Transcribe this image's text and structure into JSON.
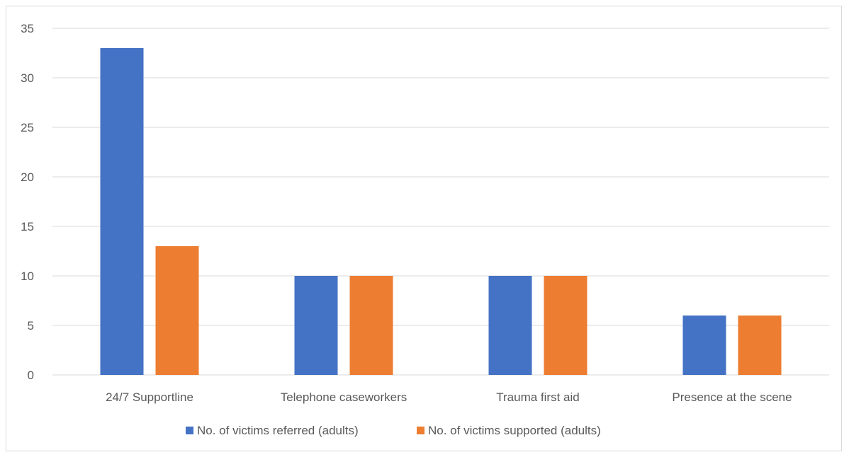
{
  "chart_data": {
    "type": "bar",
    "title": "",
    "xlabel": "",
    "ylabel": "",
    "categories": [
      "24/7 Supportline",
      "Telephone caseworkers",
      "Trauma first aid",
      "Presence at the scene"
    ],
    "series": [
      {
        "name": "No. of victims referred (adults)",
        "values": [
          33,
          10,
          10,
          6
        ],
        "color": "#4472c4"
      },
      {
        "name": "No. of victims supported (adults)",
        "values": [
          13,
          10,
          10,
          6
        ],
        "color": "#ed7d31"
      }
    ],
    "ylim": [
      0,
      35
    ],
    "yticks": [
      "0",
      "5",
      "10",
      "15",
      "20",
      "25",
      "30",
      "35"
    ],
    "grid": true,
    "legend_position": "bottom",
    "gridline_color": "#d9d9d9"
  }
}
